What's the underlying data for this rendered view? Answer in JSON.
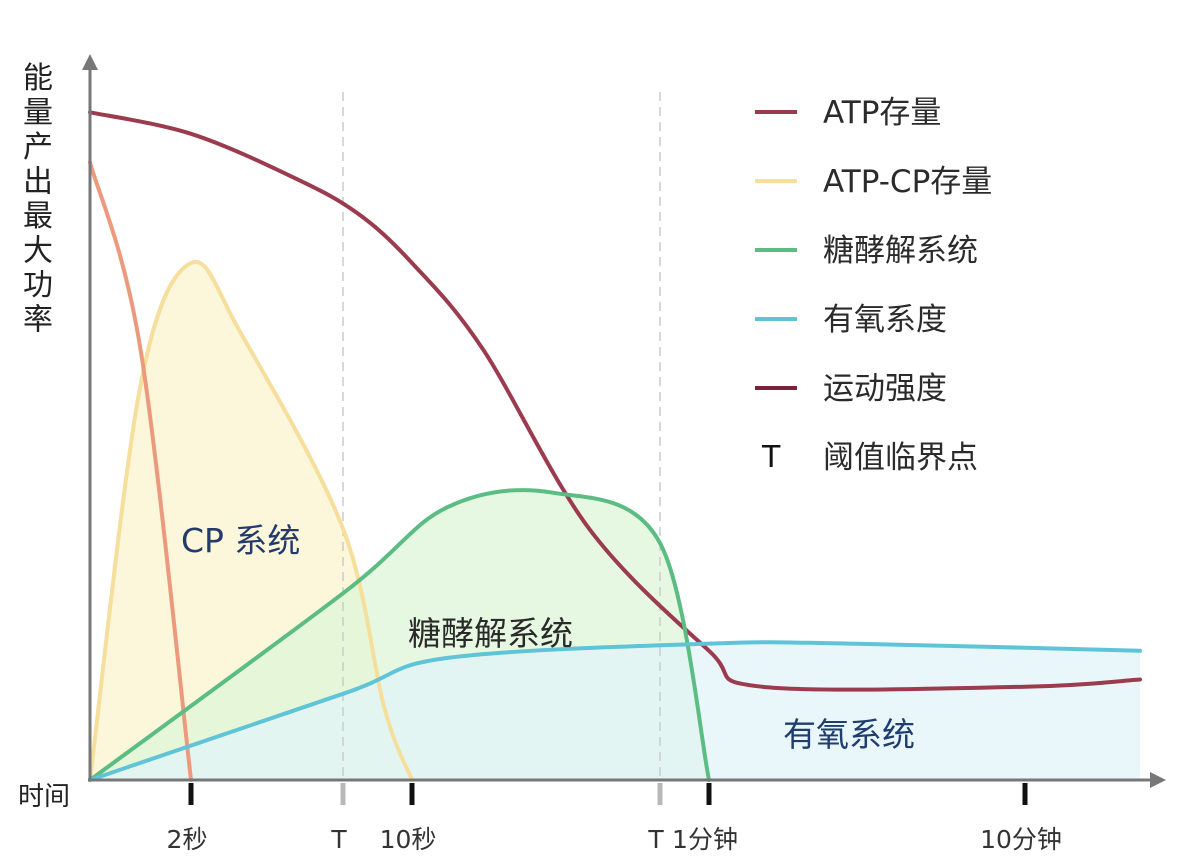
{
  "chart_data": {
    "type": "line",
    "title": "",
    "ylabel": "能量产出最大功率",
    "xlabel": "时间",
    "x_ticks": [
      {
        "label": "2秒",
        "t": 2
      },
      {
        "label": "T",
        "t": 5,
        "kind": "threshold"
      },
      {
        "label": "10秒",
        "t": 10
      },
      {
        "label": "T",
        "t": 45,
        "kind": "threshold"
      },
      {
        "label": "1分钟",
        "t": 60
      },
      {
        "label": "10分钟",
        "t": 600
      }
    ],
    "x_scale": "log",
    "series": [
      {
        "name": "ATP存量",
        "color": "#9b3b4e",
        "fill": false,
        "points": [
          [
            0,
            0.93
          ],
          [
            2,
            0.9
          ],
          [
            4,
            0.84
          ],
          [
            6,
            0.79
          ],
          [
            10,
            0.72
          ],
          [
            20,
            0.6
          ],
          [
            35,
            0.35
          ],
          [
            60,
            0.18
          ],
          [
            150,
            0.13
          ],
          [
            600,
            0.13
          ],
          [
            1000,
            0.14
          ]
        ]
      },
      {
        "name": "ATP-CP存量",
        "color": "#f6df9c",
        "fill": "#fbf3cf",
        "points": [
          [
            0,
            0
          ],
          [
            1,
            0.55
          ],
          [
            2,
            0.72
          ],
          [
            3,
            0.62
          ],
          [
            5,
            0.35
          ],
          [
            8,
            0.1
          ],
          [
            10,
            0
          ]
        ]
      },
      {
        "name": "",
        "color": "#ec9a7e",
        "fill": false,
        "points": [
          [
            0,
            0.86
          ],
          [
            1,
            0.6
          ],
          [
            2,
            0
          ]
        ]
      },
      {
        "name": "糖酵解系统",
        "color": "#5bbd84",
        "fill": "#dff5d8",
        "points": [
          [
            0,
            0
          ],
          [
            5,
            0.26
          ],
          [
            15,
            0.38
          ],
          [
            30,
            0.4
          ],
          [
            45,
            0.33
          ],
          [
            60,
            0
          ]
        ]
      },
      {
        "name": "有氧系度",
        "color": "#5fc4d8",
        "fill": "#e1f4f8",
        "points": [
          [
            0,
            0
          ],
          [
            5,
            0.12
          ],
          [
            15,
            0.17
          ],
          [
            60,
            0.19
          ],
          [
            300,
            0.19
          ],
          [
            1000,
            0.18
          ]
        ]
      }
    ],
    "legend": {
      "position": "top-right",
      "items": [
        {
          "label": "ATP存量",
          "color": "#9b3b4e",
          "symbol": "line"
        },
        {
          "label": "ATP-CP存量",
          "color": "#f6df9c",
          "symbol": "line"
        },
        {
          "label": "糖酵解系统",
          "color": "#5bbd84",
          "symbol": "line"
        },
        {
          "label": "有氧系度",
          "color": "#5fc4d8",
          "symbol": "line"
        },
        {
          "label": "运动强度",
          "color": "#7a2238",
          "symbol": "line"
        },
        {
          "label": "阈值临界点",
          "color": "#111111",
          "symbol": "T"
        }
      ]
    },
    "annotations": [
      {
        "text": "CP 系统",
        "color": "#233a6b"
      },
      {
        "text": "糖酵解系统",
        "color": "#2a2a2a"
      },
      {
        "text": "有氧系统",
        "color": "#1f3d6e"
      }
    ],
    "grid": false
  }
}
